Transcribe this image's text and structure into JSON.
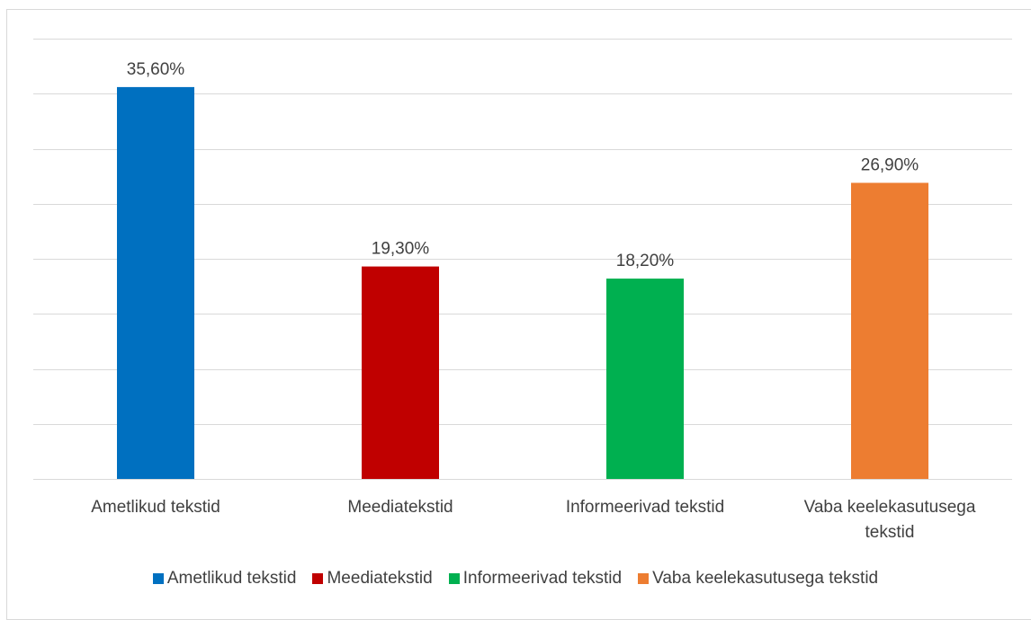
{
  "chart_data": {
    "type": "bar",
    "categories": [
      "Ametlikud tekstid",
      "Meediatekstid",
      "Informeerivad tekstid",
      "Vaba keelekasutusega tekstid"
    ],
    "category_lines": [
      [
        "Ametlikud tekstid"
      ],
      [
        "Meediatekstid"
      ],
      [
        "Informeerivad tekstid"
      ],
      [
        "Vaba keelekasutusega",
        "tekstid"
      ]
    ],
    "values": [
      35.6,
      19.3,
      18.2,
      26.9
    ],
    "data_labels": [
      "35,60%",
      "19,30%",
      "18,20%",
      "26,90%"
    ],
    "colors": [
      "#0070C0",
      "#C00000",
      "#00B050",
      "#ED7D31"
    ],
    "ylim": [
      0,
      40
    ],
    "grid": true,
    "legend_position": "bottom"
  }
}
